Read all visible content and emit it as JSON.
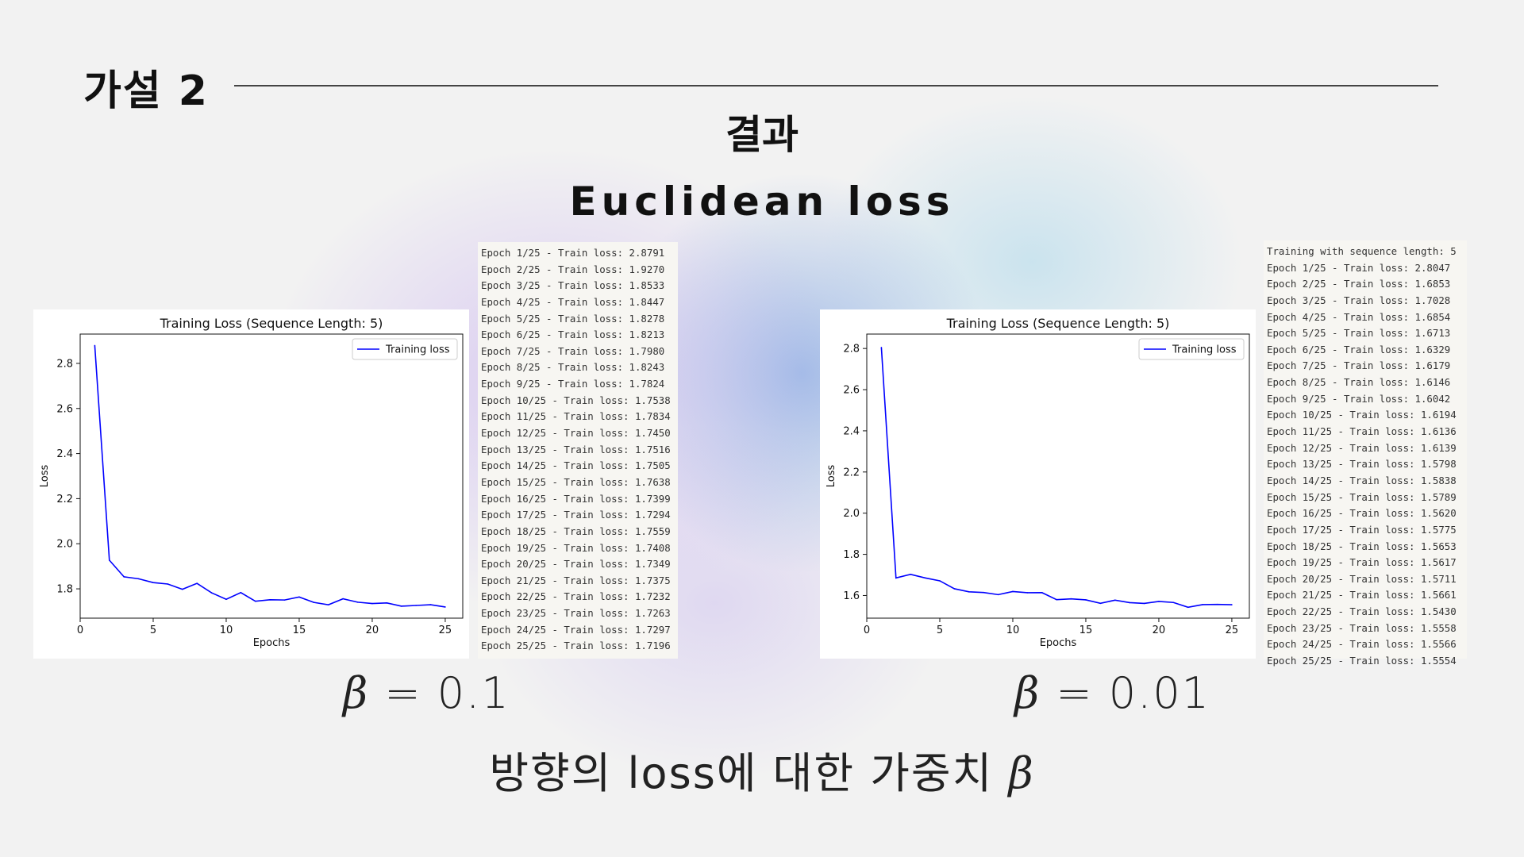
{
  "slide": {
    "section_title": "가설 2",
    "subtitle": "결과",
    "loss_name": "Euclidean loss",
    "caption_text": "방향의 loss에 대한 가중치",
    "caption_symbol": "β"
  },
  "panels": [
    {
      "beta_symbol": "β",
      "beta_value": "= 0.1",
      "log_lines": [
        "Epoch 1/25 - Train loss: 2.8791",
        "Epoch 2/25 - Train loss: 1.9270",
        "Epoch 3/25 - Train loss: 1.8533",
        "Epoch 4/25 - Train loss: 1.8447",
        "Epoch 5/25 - Train loss: 1.8278",
        "Epoch 6/25 - Train loss: 1.8213",
        "Epoch 7/25 - Train loss: 1.7980",
        "Epoch 8/25 - Train loss: 1.8243",
        "Epoch 9/25 - Train loss: 1.7824",
        "Epoch 10/25 - Train loss: 1.7538",
        "Epoch 11/25 - Train loss: 1.7834",
        "Epoch 12/25 - Train loss: 1.7450",
        "Epoch 13/25 - Train loss: 1.7516",
        "Epoch 14/25 - Train loss: 1.7505",
        "Epoch 15/25 - Train loss: 1.7638",
        "Epoch 16/25 - Train loss: 1.7399",
        "Epoch 17/25 - Train loss: 1.7294",
        "Epoch 18/25 - Train loss: 1.7559",
        "Epoch 19/25 - Train loss: 1.7408",
        "Epoch 20/25 - Train loss: 1.7349",
        "Epoch 21/25 - Train loss: 1.7375",
        "Epoch 22/25 - Train loss: 1.7232",
        "Epoch 23/25 - Train loss: 1.7263",
        "Epoch 24/25 - Train loss: 1.7297",
        "Epoch 25/25 - Train loss: 1.7196"
      ]
    },
    {
      "beta_symbol": "β",
      "beta_value": "= 0.01",
      "log_lines": [
        "Training with sequence length: 5",
        "Epoch 1/25 - Train loss: 2.8047",
        "Epoch 2/25 - Train loss: 1.6853",
        "Epoch 3/25 - Train loss: 1.7028",
        "Epoch 4/25 - Train loss: 1.6854",
        "Epoch 5/25 - Train loss: 1.6713",
        "Epoch 6/25 - Train loss: 1.6329",
        "Epoch 7/25 - Train loss: 1.6179",
        "Epoch 8/25 - Train loss: 1.6146",
        "Epoch 9/25 - Train loss: 1.6042",
        "Epoch 10/25 - Train loss: 1.6194",
        "Epoch 11/25 - Train loss: 1.6136",
        "Epoch 12/25 - Train loss: 1.6139",
        "Epoch 13/25 - Train loss: 1.5798",
        "Epoch 14/25 - Train loss: 1.5838",
        "Epoch 15/25 - Train loss: 1.5789",
        "Epoch 16/25 - Train loss: 1.5620",
        "Epoch 17/25 - Train loss: 1.5775",
        "Epoch 18/25 - Train loss: 1.5653",
        "Epoch 19/25 - Train loss: 1.5617",
        "Epoch 20/25 - Train loss: 1.5711",
        "Epoch 21/25 - Train loss: 1.5661",
        "Epoch 22/25 - Train loss: 1.5430",
        "Epoch 23/25 - Train loss: 1.5558",
        "Epoch 24/25 - Train loss: 1.5566",
        "Epoch 25/25 - Train loss: 1.5554"
      ]
    }
  ],
  "chart_data": [
    {
      "type": "line",
      "title": "Training Loss (Sequence Length: 5)",
      "xlabel": "Epochs",
      "ylabel": "Loss",
      "xlim": [
        0,
        26.2
      ],
      "ylim": [
        1.67,
        2.93
      ],
      "xticks": [
        0,
        5,
        10,
        15,
        20,
        25
      ],
      "yticks": [
        1.8,
        2.0,
        2.2,
        2.4,
        2.6,
        2.8
      ],
      "legend": "top-right",
      "grid": false,
      "series": [
        {
          "name": "Training loss",
          "color": "#0000ff",
          "x": [
            1,
            2,
            3,
            4,
            5,
            6,
            7,
            8,
            9,
            10,
            11,
            12,
            13,
            14,
            15,
            16,
            17,
            18,
            19,
            20,
            21,
            22,
            23,
            24,
            25
          ],
          "y": [
            2.8791,
            1.927,
            1.8533,
            1.8447,
            1.8278,
            1.8213,
            1.798,
            1.8243,
            1.7824,
            1.7538,
            1.7834,
            1.745,
            1.7516,
            1.7505,
            1.7638,
            1.7399,
            1.7294,
            1.7559,
            1.7408,
            1.7349,
            1.7375,
            1.7232,
            1.7263,
            1.7297,
            1.7196
          ]
        }
      ]
    },
    {
      "type": "line",
      "title": "Training Loss (Sequence Length: 5)",
      "xlabel": "Epochs",
      "ylabel": "Loss",
      "xlim": [
        0,
        26.2
      ],
      "ylim": [
        1.49,
        2.87
      ],
      "xticks": [
        0,
        5,
        10,
        15,
        20,
        25
      ],
      "yticks": [
        1.6,
        1.8,
        2.0,
        2.2,
        2.4,
        2.6,
        2.8
      ],
      "legend": "top-right",
      "grid": false,
      "series": [
        {
          "name": "Training loss",
          "color": "#0000ff",
          "x": [
            1,
            2,
            3,
            4,
            5,
            6,
            7,
            8,
            9,
            10,
            11,
            12,
            13,
            14,
            15,
            16,
            17,
            18,
            19,
            20,
            21,
            22,
            23,
            24,
            25
          ],
          "y": [
            2.8047,
            1.6853,
            1.7028,
            1.6854,
            1.6713,
            1.6329,
            1.6179,
            1.6146,
            1.6042,
            1.6194,
            1.6136,
            1.6139,
            1.5798,
            1.5838,
            1.5789,
            1.562,
            1.5775,
            1.5653,
            1.5617,
            1.5711,
            1.5661,
            1.543,
            1.5558,
            1.5566,
            1.5554
          ]
        }
      ]
    }
  ]
}
